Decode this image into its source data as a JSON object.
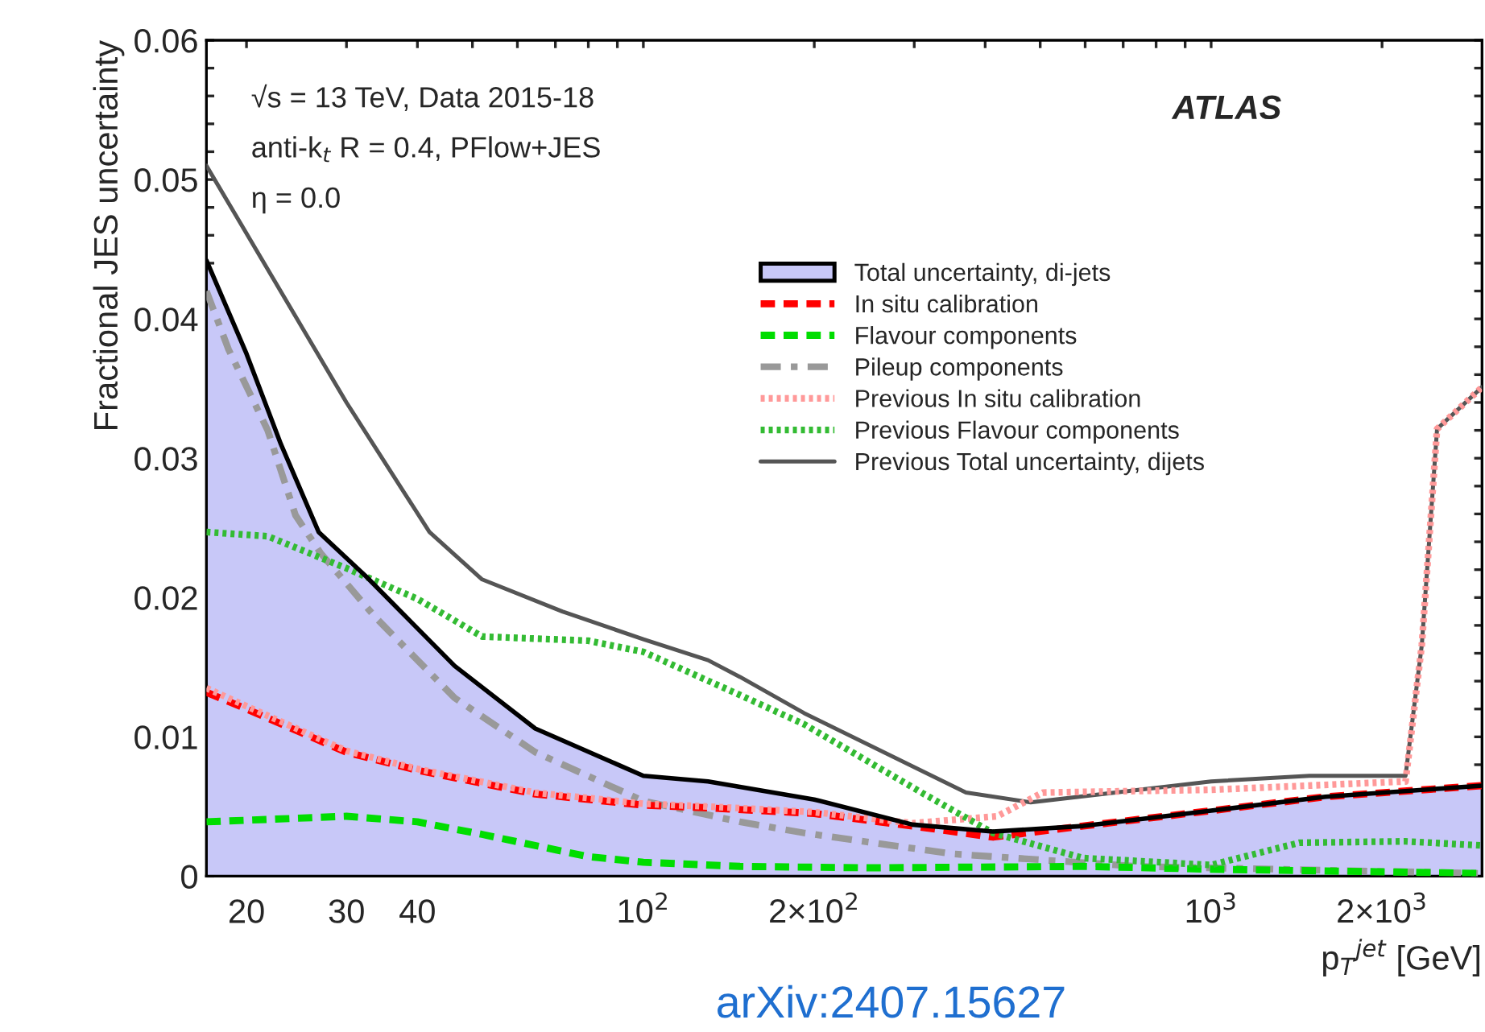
{
  "chart_data": {
    "type": "line",
    "xlabel": "p$_{T}$$^{jet}$ [GeV]",
    "ylabel": "Fractional JES uncertainty",
    "annotations": [
      "√s = 13 TeV, Data 2015-18",
      "anti-k$_{t}$ R = 0.4, PFlow+JES",
      "η = 0.0",
      "ATLAS",
      "arXiv:2407.15627"
    ],
    "log": "x",
    "xlim": [
      17,
      3000
    ],
    "ylim": [
      0,
      0.06
    ],
    "xticks": [
      {
        "value": 20,
        "label": "20"
      },
      {
        "value": 30,
        "label": "30"
      },
      {
        "value": 40,
        "label": "40"
      },
      {
        "value": 50,
        "label": null
      },
      {
        "value": 60,
        "label": null
      },
      {
        "value": 70,
        "label": null
      },
      {
        "value": 80,
        "label": null
      },
      {
        "value": 90,
        "label": null
      },
      {
        "value": 100,
        "label": "10$^{2}$"
      },
      {
        "value": 200,
        "label": "2×10$^{2}$"
      },
      {
        "value": 300,
        "label": null
      },
      {
        "value": 400,
        "label": null
      },
      {
        "value": 500,
        "label": null
      },
      {
        "value": 600,
        "label": null
      },
      {
        "value": 700,
        "label": null
      },
      {
        "value": 800,
        "label": null
      },
      {
        "value": 900,
        "label": null
      },
      {
        "value": 1000,
        "label": "10$^{3}$"
      },
      {
        "value": 2000,
        "label": "2×10$^{3}$"
      }
    ],
    "yticks": [
      0,
      {
        "value": 0.002,
        "label": null
      },
      {
        "value": 0.004,
        "label": null
      },
      {
        "value": 0.006,
        "label": null
      },
      {
        "value": 0.008,
        "label": null
      },
      0.01,
      {
        "value": 0.012,
        "label": null
      },
      {
        "value": 0.014,
        "label": null
      },
      {
        "value": 0.016,
        "label": null
      },
      {
        "value": 0.018,
        "label": null
      },
      0.02,
      {
        "value": 0.022,
        "label": null
      },
      {
        "value": 0.024,
        "label": null
      },
      {
        "value": 0.026,
        "label": null
      },
      {
        "value": 0.028,
        "label": null
      },
      0.03,
      {
        "value": 0.032,
        "label": null
      },
      {
        "value": 0.034,
        "label": null
      },
      {
        "value": 0.036,
        "label": null
      },
      {
        "value": 0.038,
        "label": null
      },
      0.04,
      {
        "value": 0.042,
        "label": null
      },
      {
        "value": 0.044,
        "label": null
      },
      {
        "value": 0.046,
        "label": null
      },
      {
        "value": 0.048,
        "label": null
      },
      0.05,
      {
        "value": 0.052,
        "label": null
      },
      {
        "value": 0.054,
        "label": null
      },
      {
        "value": 0.056,
        "label": null
      },
      {
        "value": 0.058,
        "label": null
      },
      0.06
    ],
    "grid": false,
    "legend": "top right",
    "series": [
      {
        "name": "Total uncertainty, di-jets",
        "type": "area",
        "color": "#c8c8f8",
        "x": [
          17,
          20,
          23,
          26.8,
          32.5,
          46.5,
          64.5,
          100,
          130,
          200,
          298,
          413,
          595,
          1000,
          1590,
          3000
        ],
        "values": [
          0.0442,
          0.0375,
          0.031,
          0.0247,
          0.0215,
          0.0151,
          0.0106,
          0.0072,
          0.0068,
          0.0055,
          0.0037,
          0.0032,
          0.0036,
          0.0047,
          0.0057,
          0.0065
        ]
      },
      {
        "name": "In situ calibration",
        "line_style": "dashed",
        "color": "#ff0000",
        "x": [
          17,
          20,
          30,
          40,
          64.5,
          100,
          130,
          200,
          298,
          413,
          595,
          1000,
          1590,
          3000
        ],
        "values": [
          0.0132,
          0.012,
          0.0089,
          0.0076,
          0.0059,
          0.0051,
          0.0049,
          0.0045,
          0.0036,
          0.0028,
          0.0036,
          0.0047,
          0.0057,
          0.0065
        ]
      },
      {
        "name": "Flavour components",
        "line_style": "dashed",
        "color": "#00dd00",
        "x": [
          17,
          30,
          40,
          52,
          80,
          100,
          148,
          250,
          595,
          1000,
          3000
        ],
        "values": [
          0.0039,
          0.0043,
          0.0039,
          0.003,
          0.0014,
          0.001,
          0.0007,
          0.0006,
          0.0007,
          0.0005,
          0.0002
        ]
      },
      {
        "name": "Pileup components",
        "line_style": "dashdot",
        "color": "#999999",
        "x": [
          17,
          18.6,
          21.8,
          24.4,
          27,
          33.7,
          46.5,
          64.5,
          100,
          148,
          192,
          350,
          745,
          3000
        ],
        "values": [
          0.042,
          0.0378,
          0.032,
          0.0259,
          0.0232,
          0.0186,
          0.0128,
          0.0089,
          0.0054,
          0.0039,
          0.0031,
          0.0016,
          0.0007,
          0.0002
        ]
      },
      {
        "name": "Previous In situ calibration",
        "line_style": "dotted",
        "color": "#ff9999",
        "x": [
          17,
          20,
          30,
          40,
          64.5,
          100,
          130,
          200,
          298,
          420,
          505,
          1000,
          2200,
          2350,
          2500,
          3000
        ],
        "values": [
          0.0135,
          0.0122,
          0.009,
          0.0077,
          0.006,
          0.0052,
          0.005,
          0.0046,
          0.0038,
          0.0043,
          0.006,
          0.0062,
          0.0068,
          0.0166,
          0.0321,
          0.0351
        ]
      },
      {
        "name": "Previous Flavour components",
        "line_style": "dotted",
        "color": "#33bb33",
        "x": [
          17,
          21.8,
          30,
          40,
          52,
          80,
          100,
          148,
          192,
          312,
          413,
          595,
          1000,
          1430,
          2200,
          3000
        ],
        "values": [
          0.0247,
          0.0244,
          0.0221,
          0.0199,
          0.0172,
          0.0169,
          0.0161,
          0.013,
          0.0109,
          0.0059,
          0.0031,
          0.0013,
          0.0008,
          0.0024,
          0.0025,
          0.0022
        ]
      },
      {
        "name": "Previous Total uncertainty, dijets",
        "line_style": "solid",
        "color": "#555555",
        "x": [
          17,
          30,
          42,
          52,
          72,
          100,
          130,
          148,
          192,
          370,
          481,
          1000,
          1490,
          2200,
          2350,
          2500,
          3000
        ],
        "values": [
          0.051,
          0.034,
          0.0247,
          0.0213,
          0.019,
          0.017,
          0.0155,
          0.0143,
          0.0117,
          0.006,
          0.0053,
          0.0068,
          0.0072,
          0.0072,
          0.0166,
          0.0321,
          0.0351
        ]
      }
    ]
  }
}
